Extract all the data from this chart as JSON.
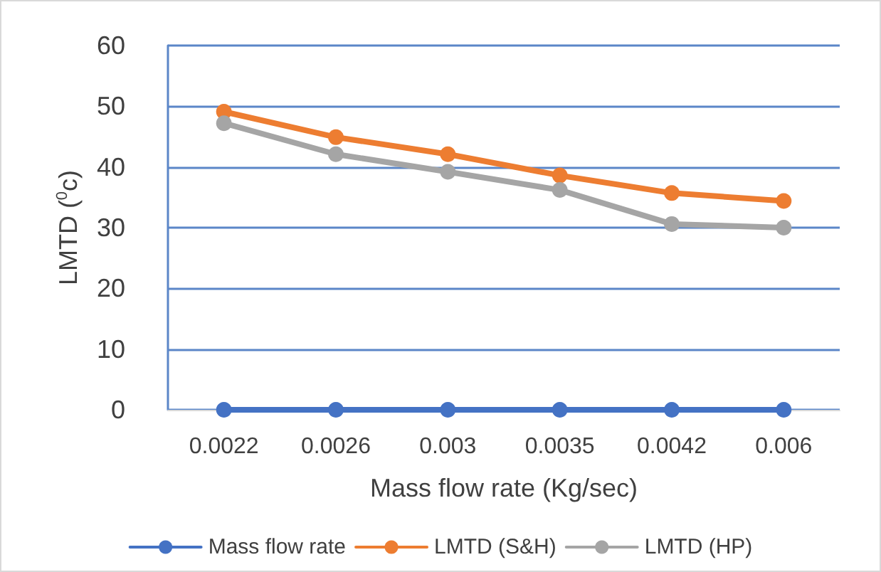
{
  "chart_data": {
    "type": "line",
    "xlabel": "Mass flow rate (Kg/sec)",
    "ylabel": "LMTD ($^{0}$c)",
    "categories": [
      "0.0022",
      "0.0026",
      "0.003",
      "0.0035",
      "0.0042",
      "0.006"
    ],
    "series": [
      {
        "name": "Mass flow rate",
        "color": "#4472c4",
        "values": [
          0,
          0,
          0,
          0,
          0,
          0
        ]
      },
      {
        "name": "LMTD (S&H)",
        "color": "#ed7d31",
        "values": [
          49.1,
          44.9,
          42.1,
          38.6,
          35.7,
          34.4
        ]
      },
      {
        "name": "LMTD (HP)",
        "color": "#a5a5a5",
        "values": [
          47.2,
          42.1,
          39.2,
          36.2,
          30.6,
          30.0
        ]
      }
    ],
    "ylim": [
      0,
      60
    ],
    "yticks": [
      0,
      10,
      20,
      30,
      40,
      50,
      60
    ],
    "grid": "y",
    "legend": "bottom",
    "marker": "circle",
    "line_style": "solid"
  }
}
